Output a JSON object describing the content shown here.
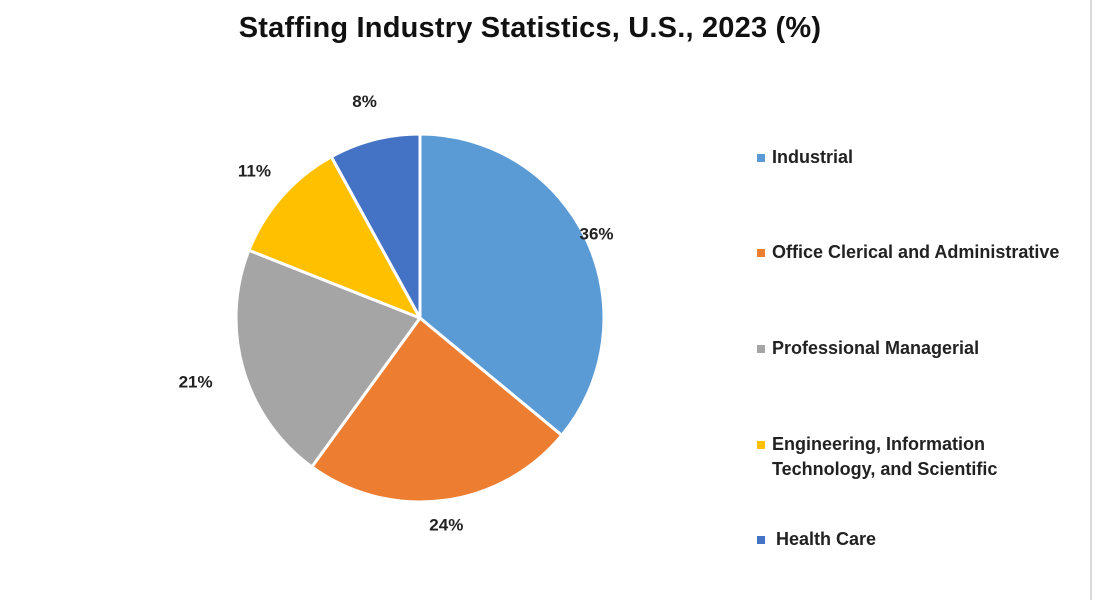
{
  "chart_data": {
    "type": "pie",
    "title": "Staffing Industry Statistics, U.S., 2023 (%)",
    "categories": [
      "Industrial",
      "Office Clerical and Administrative",
      "Professional Managerial",
      "Engineering, Information Technology, and Scientific",
      "Health Care"
    ],
    "values": [
      36,
      24,
      21,
      11,
      8
    ],
    "data_labels": [
      "36%",
      "24%",
      "21%",
      "11%",
      "8%"
    ],
    "colors": [
      "#5B9BD5",
      "#ED7D31",
      "#A5A5A5",
      "#FFC000",
      "#4472C4"
    ],
    "legend_position": "right",
    "start": "12 o'clock, clockwise"
  }
}
